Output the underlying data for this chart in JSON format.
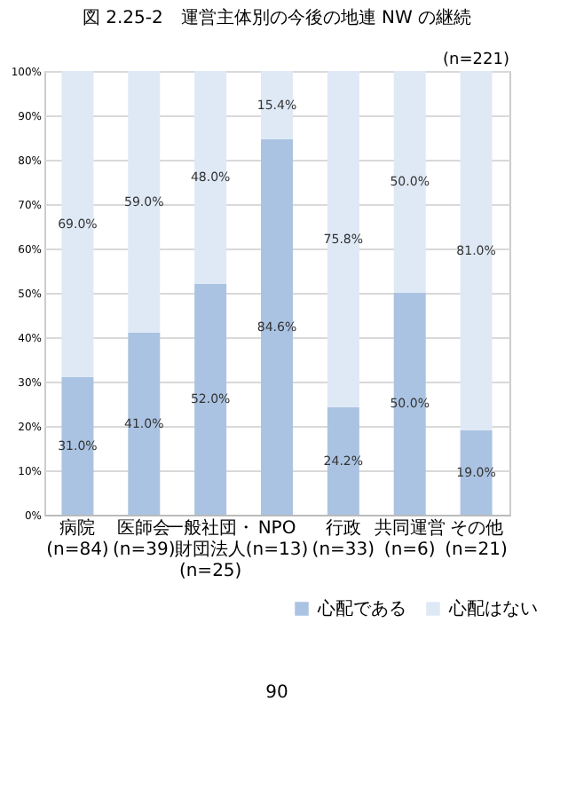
{
  "chart_data": {
    "type": "bar",
    "title": "図 2.25-2　運営主体別の今後の地連 NW の継続",
    "stacked": true,
    "categories": [
      "病院\n(n=84)",
      "医師会\n(n=39)",
      "一般社団・財団法人\n(n=25)",
      "NPO\n(n=13)",
      "行政\n(n=33)",
      "共同運営\n(n=6)",
      "その他\n(n=21)"
    ],
    "series": [
      {
        "name": "心配である",
        "color": "#abc3e2",
        "values": [
          31.0,
          41.0,
          52.0,
          84.6,
          24.2,
          50.0,
          19.0
        ]
      },
      {
        "name": "心配はない",
        "color": "#dfe9f6",
        "values": [
          69.0,
          59.0,
          48.0,
          15.4,
          75.8,
          50.0,
          81.0
        ]
      }
    ],
    "ylim": [
      0,
      100
    ],
    "yticks": [
      {
        "value": 0,
        "label": "0%"
      },
      {
        "value": 10,
        "label": "10%"
      },
      {
        "value": 20,
        "label": "20%"
      },
      {
        "value": 30,
        "label": "30%"
      },
      {
        "value": 40,
        "label": "40%"
      },
      {
        "value": 50,
        "label": "50%"
      },
      {
        "value": 60,
        "label": "60%"
      },
      {
        "value": 70,
        "label": "70%"
      },
      {
        "value": 80,
        "label": "80%"
      },
      {
        "value": 90,
        "label": "90%"
      },
      {
        "value": 100,
        "label": "100%"
      }
    ],
    "value_labels": [
      [
        "31.0%",
        "41.0%",
        "52.0%",
        "84.6%",
        "24.2%",
        "50.0%",
        "19.0%"
      ],
      [
        "69.0%",
        "59.0%",
        "48.0%",
        "15.4%",
        "75.8%",
        "50.0%",
        "81.0%"
      ]
    ],
    "grid": "y",
    "legend": "bottom right",
    "annotations": [
      "(n=221)",
      "90"
    ]
  }
}
